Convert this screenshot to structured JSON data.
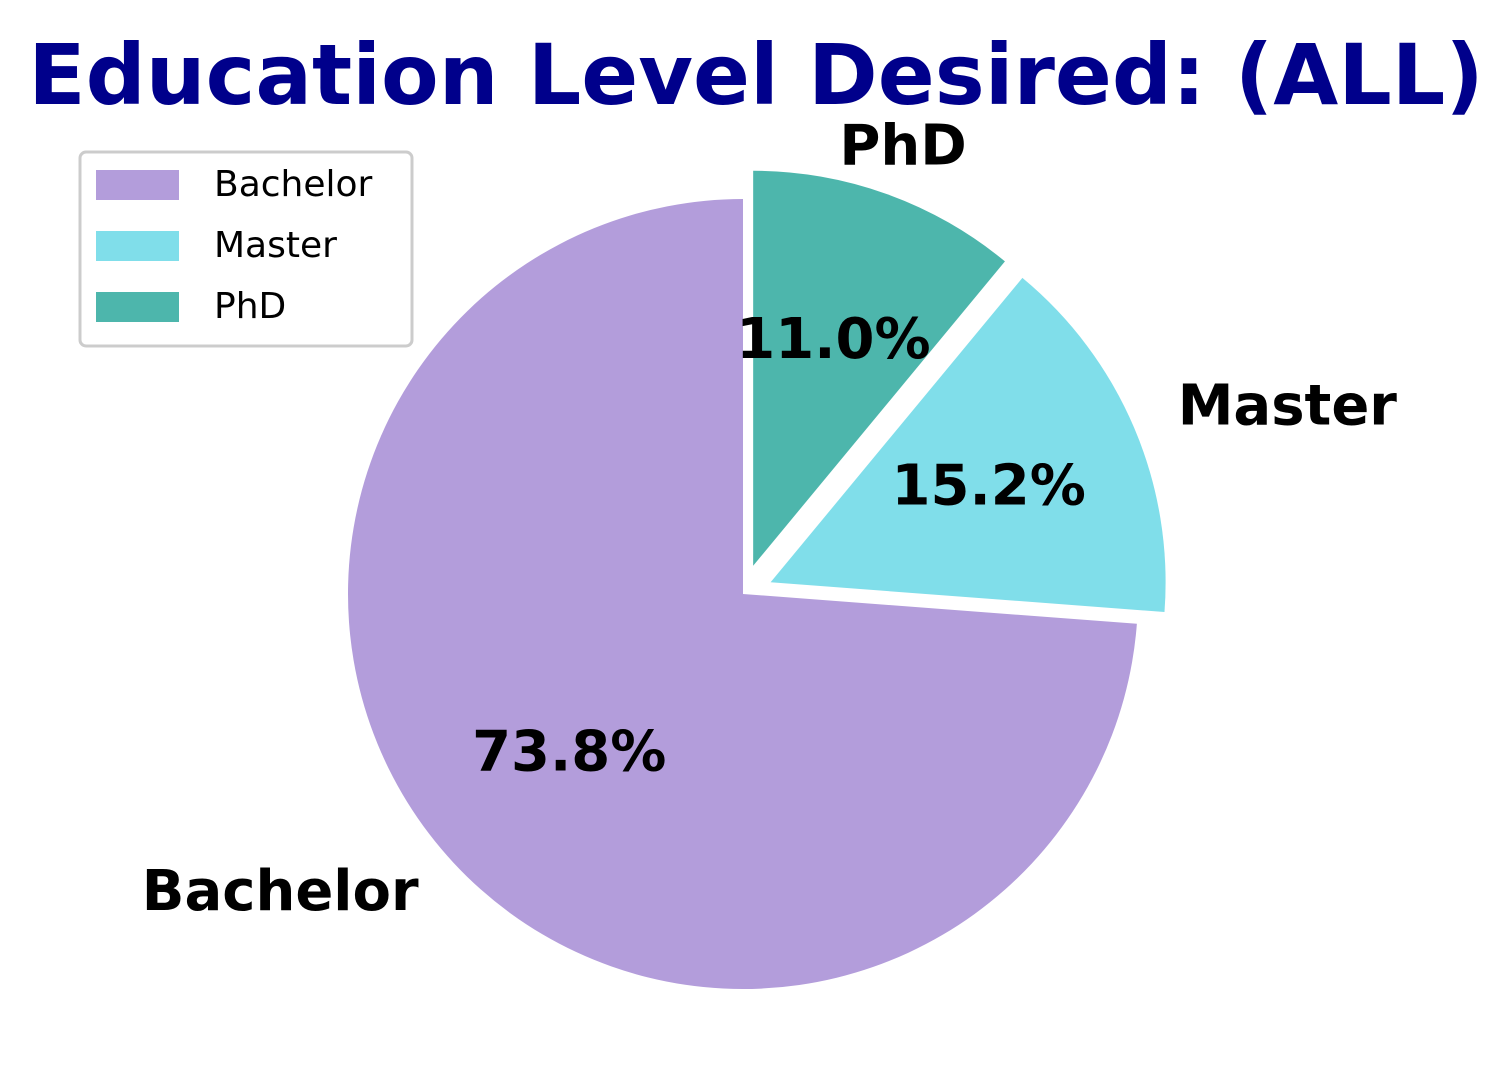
{
  "chart_data": {
    "type": "pie",
    "title": "Education Level Desired: (ALL)",
    "categories": [
      "Bachelor",
      "Master",
      "PhD"
    ],
    "values": [
      73.8,
      15.2,
      11.0
    ],
    "value_labels": [
      "73.8%",
      "15.2%",
      "11.0%"
    ],
    "exploded": [
      false,
      true,
      true
    ],
    "start_angle_deg": 90,
    "direction": "counterclockwise",
    "legend": {
      "placement": "upper-left",
      "entries": [
        "Bachelor",
        "Master",
        "PhD"
      ]
    },
    "colors": {
      "Bachelor": "#B39DDB",
      "Master": "#80DEEA",
      "PhD": "#4DB6AC",
      "title": "#00008B"
    }
  }
}
